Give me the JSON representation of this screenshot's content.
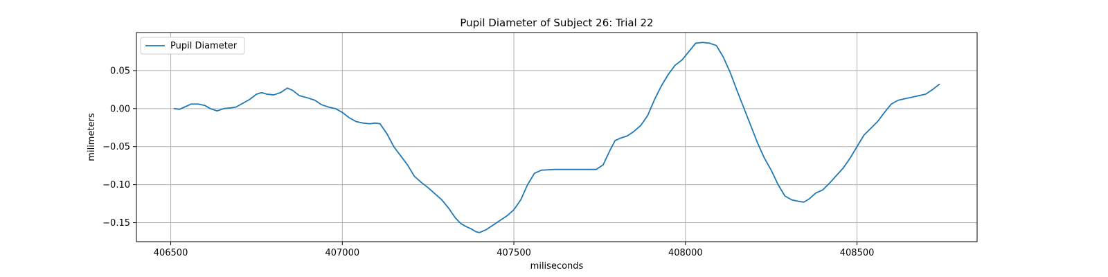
{
  "chart_data": {
    "type": "line",
    "title": "Pupil Diameter of Subject 26: Trial 22",
    "xlabel": "miliseconds",
    "ylabel": "milimeters",
    "xlim": [
      406400,
      408850
    ],
    "ylim": [
      -0.175,
      0.1
    ],
    "xticks": [
      406500,
      407000,
      407500,
      408000,
      408500
    ],
    "xtick_labels": [
      "406500",
      "407000",
      "407500",
      "408000",
      "408500"
    ],
    "yticks": [
      -0.15,
      -0.1,
      -0.05,
      0.0,
      0.05
    ],
    "ytick_labels": [
      "−0.15",
      "−0.10",
      "−0.05",
      "0.00",
      "0.05"
    ],
    "grid": true,
    "legend_position": "top-left",
    "series": [
      {
        "name": "Pupil Diameter",
        "color": "#1f77b4",
        "points": [
          [
            406510,
            0.0
          ],
          [
            406525,
            -0.001
          ],
          [
            406540,
            0.002
          ],
          [
            406560,
            0.006
          ],
          [
            406580,
            0.006
          ],
          [
            406600,
            0.004
          ],
          [
            406615,
            0.0
          ],
          [
            406635,
            -0.003
          ],
          [
            406655,
            0.0
          ],
          [
            406675,
            0.001
          ],
          [
            406690,
            0.002
          ],
          [
            406710,
            0.007
          ],
          [
            406730,
            0.012
          ],
          [
            406750,
            0.019
          ],
          [
            406765,
            0.021
          ],
          [
            406780,
            0.019
          ],
          [
            406800,
            0.018
          ],
          [
            406820,
            0.021
          ],
          [
            406840,
            0.027
          ],
          [
            406855,
            0.024
          ],
          [
            406875,
            0.017
          ],
          [
            406900,
            0.014
          ],
          [
            406920,
            0.011
          ],
          [
            406940,
            0.005
          ],
          [
            406960,
            0.002
          ],
          [
            406980,
            0.0
          ],
          [
            407000,
            -0.005
          ],
          [
            407020,
            -0.012
          ],
          [
            407040,
            -0.017
          ],
          [
            407060,
            -0.019
          ],
          [
            407080,
            -0.02
          ],
          [
            407095,
            -0.019
          ],
          [
            407110,
            -0.02
          ],
          [
            407130,
            -0.033
          ],
          [
            407150,
            -0.05
          ],
          [
            407170,
            -0.062
          ],
          [
            407190,
            -0.074
          ],
          [
            407210,
            -0.089
          ],
          [
            407230,
            -0.097
          ],
          [
            407250,
            -0.104
          ],
          [
            407270,
            -0.112
          ],
          [
            407290,
            -0.12
          ],
          [
            407310,
            -0.131
          ],
          [
            407330,
            -0.144
          ],
          [
            407345,
            -0.151
          ],
          [
            407360,
            -0.155
          ],
          [
            407375,
            -0.158
          ],
          [
            407390,
            -0.162
          ],
          [
            407400,
            -0.163
          ],
          [
            407420,
            -0.159
          ],
          [
            407440,
            -0.153
          ],
          [
            407460,
            -0.147
          ],
          [
            407480,
            -0.141
          ],
          [
            407500,
            -0.133
          ],
          [
            407520,
            -0.12
          ],
          [
            407540,
            -0.1
          ],
          [
            407560,
            -0.085
          ],
          [
            407580,
            -0.081
          ],
          [
            407620,
            -0.08
          ],
          [
            407700,
            -0.08
          ],
          [
            407740,
            -0.08
          ],
          [
            407760,
            -0.074
          ],
          [
            407780,
            -0.055
          ],
          [
            407795,
            -0.042
          ],
          [
            407810,
            -0.039
          ],
          [
            407830,
            -0.036
          ],
          [
            407850,
            -0.03
          ],
          [
            407870,
            -0.022
          ],
          [
            407890,
            -0.009
          ],
          [
            407910,
            0.012
          ],
          [
            407930,
            0.03
          ],
          [
            407950,
            0.045
          ],
          [
            407970,
            0.057
          ],
          [
            407990,
            0.064
          ],
          [
            408010,
            0.075
          ],
          [
            408030,
            0.086
          ],
          [
            408050,
            0.087
          ],
          [
            408070,
            0.086
          ],
          [
            408090,
            0.083
          ],
          [
            408110,
            0.068
          ],
          [
            408130,
            0.048
          ],
          [
            408150,
            0.024
          ],
          [
            408170,
            0.001
          ],
          [
            408190,
            -0.022
          ],
          [
            408210,
            -0.045
          ],
          [
            408230,
            -0.065
          ],
          [
            408250,
            -0.081
          ],
          [
            408270,
            -0.1
          ],
          [
            408290,
            -0.115
          ],
          [
            408310,
            -0.12
          ],
          [
            408330,
            -0.122
          ],
          [
            408345,
            -0.123
          ],
          [
            408360,
            -0.119
          ],
          [
            408380,
            -0.111
          ],
          [
            408400,
            -0.107
          ],
          [
            408420,
            -0.098
          ],
          [
            408440,
            -0.088
          ],
          [
            408460,
            -0.078
          ],
          [
            408480,
            -0.065
          ],
          [
            408500,
            -0.05
          ],
          [
            408520,
            -0.035
          ],
          [
            408540,
            -0.026
          ],
          [
            408560,
            -0.017
          ],
          [
            408580,
            -0.005
          ],
          [
            408600,
            0.006
          ],
          [
            408620,
            0.011
          ],
          [
            408640,
            0.013
          ],
          [
            408660,
            0.015
          ],
          [
            408680,
            0.017
          ],
          [
            408700,
            0.019
          ],
          [
            408720,
            0.025
          ],
          [
            408740,
            0.032
          ]
        ]
      }
    ]
  }
}
